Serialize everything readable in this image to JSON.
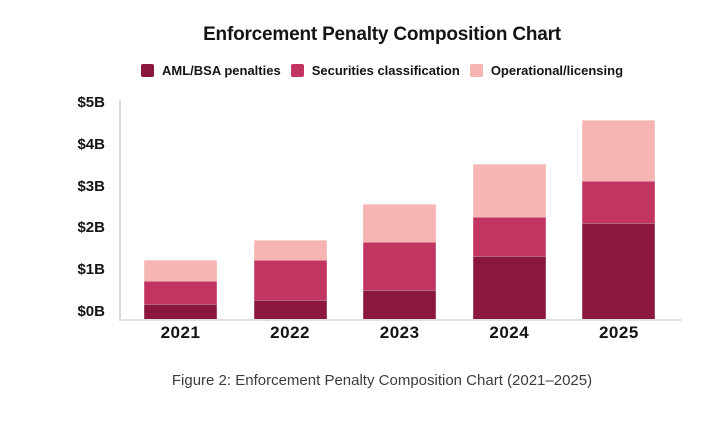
{
  "caption": "Figure 2: Enforcement Penalty Composition Chart (2021–2025)",
  "colors": {
    "background": "#ffffff",
    "axis_line": "#dddddd",
    "text": "#141414",
    "caption_text": "#3c3c3c",
    "series_dark": "#8b173c",
    "series_medium": "#c23560",
    "series_light": "#f6b5b2"
  },
  "chart_data": {
    "type": "bar",
    "stacked": true,
    "title": "Enforcement Penalty Composition Chart",
    "xlabel": "",
    "ylabel": "",
    "unit": "$B",
    "ylim": [
      0,
      5
    ],
    "grid": false,
    "legend_position": "top",
    "y_ticks": [
      "$0B",
      "$1B",
      "$2B",
      "$3B",
      "$4B",
      "$5B"
    ],
    "categories": [
      "2021",
      "2022",
      "2023",
      "2024",
      "2025"
    ],
    "series": [
      {
        "name": "AML/BSA penalties",
        "color": "#8b173c",
        "values": [
          0.35,
          0.45,
          0.7,
          1.5,
          2.3
        ]
      },
      {
        "name": "Securities classification",
        "color": "#c23560",
        "values": [
          0.55,
          0.95,
          1.15,
          0.95,
          1.0
        ]
      },
      {
        "name": "Operational/licensing",
        "color": "#f6b5b2",
        "values": [
          0.5,
          0.5,
          0.9,
          1.25,
          1.45
        ]
      }
    ],
    "stack_totals": [
      1.4,
      1.9,
      2.75,
      3.7,
      4.75
    ]
  }
}
